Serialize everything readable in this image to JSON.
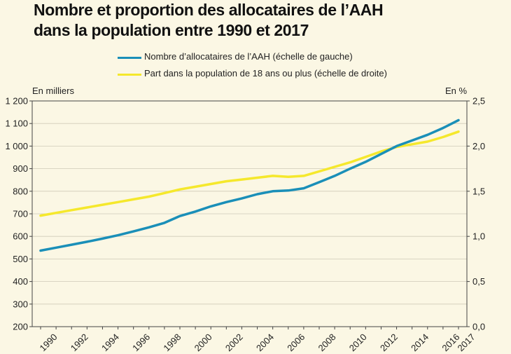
{
  "title": {
    "line1": "Nombre et proportion des allocataires de l’AAH",
    "line2": "dans la population entre 1990 et 2017"
  },
  "chart_data": {
    "type": "line",
    "title": "Nombre et proportion des allocataires de l’AAH dans la population entre 1990 et 2017",
    "x": [
      1990,
      1991,
      1992,
      1993,
      1994,
      1995,
      1996,
      1997,
      1998,
      1999,
      2000,
      2001,
      2002,
      2003,
      2004,
      2005,
      2006,
      2007,
      2008,
      2009,
      2010,
      2011,
      2012,
      2013,
      2014,
      2015,
      2016,
      2017
    ],
    "x_tick_labels": [
      "1990",
      "1992",
      "1994",
      "1996",
      "1998",
      "2000",
      "2002",
      "2004",
      "2006",
      "2008",
      "2010",
      "2012",
      "2014",
      "2016",
      "2017"
    ],
    "series": [
      {
        "name": "Nombre d’allocataires de l’AAH (échelle de gauche)",
        "axis": "left",
        "color": "#1a8fb8",
        "values": [
          537,
          550,
          563,
          576,
          590,
          605,
          622,
          640,
          660,
          690,
          710,
          733,
          752,
          768,
          787,
          800,
          803,
          813,
          840,
          868,
          900,
          930,
          965,
          1000,
          1025,
          1050,
          1080,
          1115
        ]
      },
      {
        "name": "Part dans la population de 18 ans ou plus (échelle de droite)",
        "axis": "right",
        "color": "#f5e82c",
        "values": [
          1.23,
          1.26,
          1.29,
          1.32,
          1.35,
          1.38,
          1.41,
          1.44,
          1.48,
          1.52,
          1.55,
          1.58,
          1.61,
          1.63,
          1.65,
          1.67,
          1.66,
          1.67,
          1.72,
          1.77,
          1.82,
          1.88,
          1.94,
          1.99,
          2.02,
          2.05,
          2.1,
          2.16
        ]
      }
    ],
    "left_axis": {
      "label": "En milliers",
      "ylim": [
        200,
        1200
      ],
      "ticks": [
        200,
        300,
        400,
        500,
        600,
        700,
        800,
        900,
        1000,
        1100,
        1200
      ],
      "tick_labels": [
        "200",
        "300",
        "400",
        "500",
        "600",
        "700",
        "800",
        "900",
        "1 000",
        "1 100",
        "1 200"
      ]
    },
    "right_axis": {
      "label": "En %",
      "ylim": [
        0,
        2.5
      ],
      "ticks": [
        0,
        0.5,
        1.0,
        1.5,
        2.0,
        2.5
      ],
      "tick_labels": [
        "0,0",
        "0,5",
        "1,0",
        "1,5",
        "2,0",
        "2,5"
      ]
    },
    "grid": true,
    "legend_position": "top"
  }
}
